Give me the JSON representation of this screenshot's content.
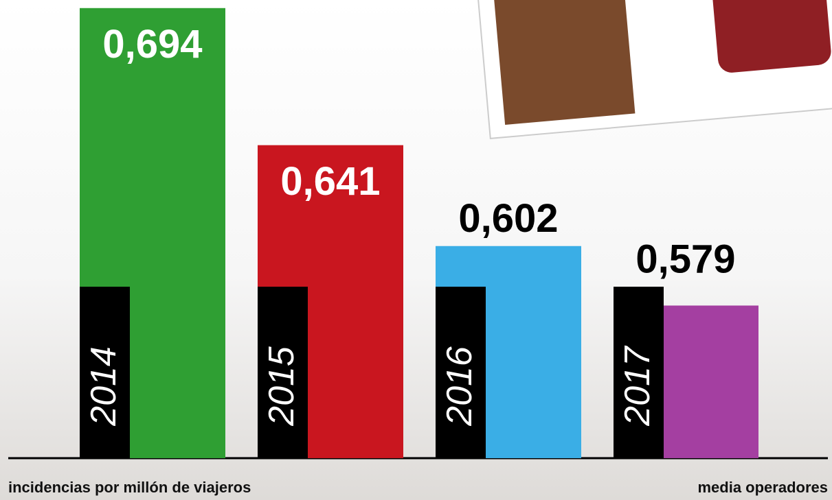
{
  "chart_data": {
    "type": "bar",
    "categories": [
      "2014",
      "2015",
      "2016",
      "2017"
    ],
    "values": [
      0.694,
      0.641,
      0.602,
      0.579
    ],
    "value_labels": [
      "0,694",
      "0,641",
      "0,602",
      "0,579"
    ],
    "colors": [
      "#2f9f33",
      "#c9161f",
      "#3aaee6",
      "#a43fa1"
    ],
    "ylim": [
      0.52,
      0.695
    ],
    "y_label": "incidencias por millón de viajeros",
    "annotation": "media operadores"
  }
}
